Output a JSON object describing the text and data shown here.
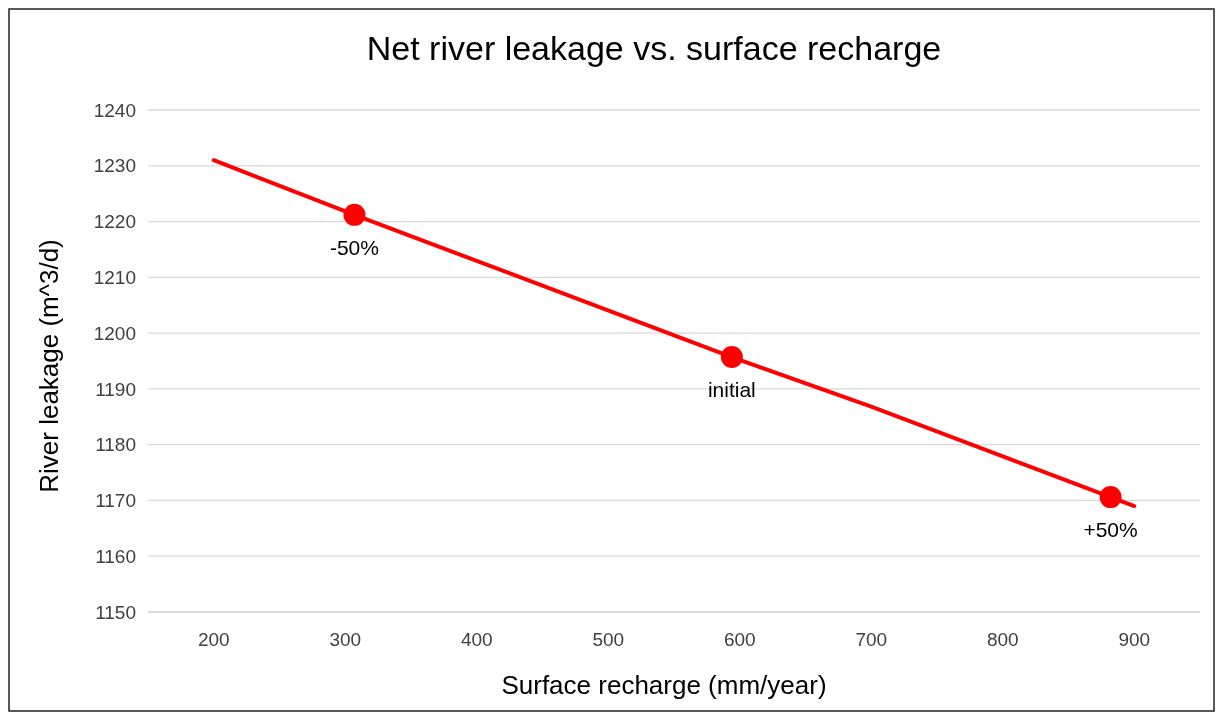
{
  "chart_data": {
    "type": "line",
    "title": "Net river leakage vs. surface recharge",
    "xlabel": "Surface recharge (mm/year)",
    "ylabel": "River leakage (m^3/d)",
    "xlim": [
      150,
      950
    ],
    "xticks": [
      200,
      300,
      400,
      500,
      600,
      700,
      800,
      900
    ],
    "ylim": [
      1150,
      1240
    ],
    "yticks": [
      1150,
      1160,
      1170,
      1180,
      1190,
      1200,
      1210,
      1220,
      1230,
      1240
    ],
    "grid": "y",
    "series": [
      {
        "type": "line",
        "color": "#ff0000",
        "marker": "none",
        "x": [
          200,
          307,
          594,
          700,
          882,
          900
        ],
        "values": [
          1231,
          1221.2,
          1195.7,
          1186.8,
          1170.6,
          1169
        ]
      },
      {
        "type": "scatter",
        "color": "#ff0000",
        "marker": "circle",
        "x": [
          307,
          594,
          882
        ],
        "values": [
          1221.2,
          1195.7,
          1170.6
        ]
      }
    ],
    "annotations": [
      {
        "text": "-50%",
        "x": 307,
        "y": 1221.2
      },
      {
        "text": "initial",
        "x": 594,
        "y": 1195.7
      },
      {
        "text": "+50%",
        "x": 882,
        "y": 1170.6
      }
    ]
  }
}
